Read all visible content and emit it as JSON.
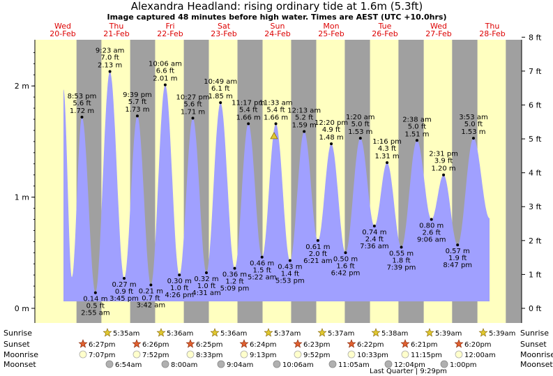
{
  "chart_data": {
    "type": "area",
    "title": "Alexandra Headland: rising  ordinary tide at 1.6m (5.3ft)",
    "subtitle": "Image captured 48 minutes before high water. Times are AEST (UTC +10.0hrs)",
    "y_left": {
      "ticks": [
        {
          "v": 0,
          "label": "0 m"
        },
        {
          "v": 1,
          "label": "1 m"
        },
        {
          "v": 2,
          "label": "2 m"
        }
      ]
    },
    "y_right": {
      "ticks": [
        "0 ft",
        "1 ft",
        "2 ft",
        "3 ft",
        "4 ft",
        "5 ft",
        "6 ft",
        "7 ft",
        "8 ft"
      ]
    },
    "ylim_m": [
      0,
      2.438
    ],
    "days": [
      {
        "dow": "Wed",
        "date": "20-Feb"
      },
      {
        "dow": "Thu",
        "date": "21-Feb"
      },
      {
        "dow": "Fri",
        "date": "22-Feb"
      },
      {
        "dow": "Sat",
        "date": "23-Feb"
      },
      {
        "dow": "Sun",
        "date": "24-Feb"
      },
      {
        "dow": "Mon",
        "date": "25-Feb"
      },
      {
        "dow": "Tue",
        "date": "26-Feb"
      },
      {
        "dow": "Wed",
        "date": "27-Feb"
      },
      {
        "dow": "Thu",
        "date": "28-Feb"
      }
    ],
    "tides": [
      {
        "type": "high",
        "day": 0,
        "time": "8:53 pm",
        "ft": "5.6 ft",
        "m": 1.72
      },
      {
        "type": "low",
        "day": 1,
        "time": "2:55 am",
        "ft": "0.5 ft",
        "m": 0.14
      },
      {
        "type": "high",
        "day": 1,
        "time": "9:23 am",
        "ft": "7.0 ft",
        "m": 2.13
      },
      {
        "type": "low",
        "day": 1,
        "time": "3:45 pm",
        "ft": "0.9 ft",
        "m": 0.27
      },
      {
        "type": "high",
        "day": 1,
        "time": "9:39 pm",
        "ft": "5.7 ft",
        "m": 1.73
      },
      {
        "type": "low",
        "day": 2,
        "time": "3:42 am",
        "ft": "0.7 ft",
        "m": 0.21
      },
      {
        "type": "high",
        "day": 2,
        "time": "10:06 am",
        "ft": "6.6 ft",
        "m": 2.01
      },
      {
        "type": "low",
        "day": 2,
        "time": "4:26 pm",
        "ft": "1.0 ft",
        "m": 0.3
      },
      {
        "type": "high",
        "day": 2,
        "time": "10:27 pm",
        "ft": "5.6 ft",
        "m": 1.71
      },
      {
        "type": "low",
        "day": 3,
        "time": "4:31 am",
        "ft": "1.0 ft",
        "m": 0.32
      },
      {
        "type": "high",
        "day": 3,
        "time": "10:49 am",
        "ft": "6.1 ft",
        "m": 1.85
      },
      {
        "type": "low",
        "day": 3,
        "time": "5:09 pm",
        "ft": "1.2 ft",
        "m": 0.36
      },
      {
        "type": "high",
        "day": 3,
        "time": "11:17 pm",
        "ft": "5.4 ft",
        "m": 1.66
      },
      {
        "type": "low",
        "day": 4,
        "time": "5:22 am",
        "ft": "1.5 ft",
        "m": 0.46
      },
      {
        "type": "high",
        "day": 4,
        "time": "11:33 am",
        "ft": "5.4 ft",
        "m": 1.66
      },
      {
        "type": "low",
        "day": 4,
        "time": "5:53 pm",
        "ft": "1.4 ft",
        "m": 0.43
      },
      {
        "type": "high",
        "day": 5,
        "time": "12:13 am",
        "ft": "5.2 ft",
        "m": 1.59
      },
      {
        "type": "low",
        "day": 5,
        "time": "6:21 am",
        "ft": "2.0 ft",
        "m": 0.61
      },
      {
        "type": "high",
        "day": 5,
        "time": "12:20 pm",
        "ft": "4.9 ft",
        "m": 1.48
      },
      {
        "type": "low",
        "day": 5,
        "time": "6:42 pm",
        "ft": "1.6 ft",
        "m": 0.5
      },
      {
        "type": "high",
        "day": 6,
        "time": "1:20 am",
        "ft": "5.0 ft",
        "m": 1.53
      },
      {
        "type": "low",
        "day": 6,
        "time": "7:36 am",
        "ft": "2.4 ft",
        "m": 0.74
      },
      {
        "type": "high",
        "day": 6,
        "time": "1:16 pm",
        "ft": "4.3 ft",
        "m": 1.31
      },
      {
        "type": "low",
        "day": 6,
        "time": "7:39 pm",
        "ft": "1.8 ft",
        "m": 0.55
      },
      {
        "type": "high",
        "day": 7,
        "time": "2:38 am",
        "ft": "5.0 ft",
        "m": 1.51
      },
      {
        "type": "low",
        "day": 7,
        "time": "9:06 am",
        "ft": "2.6 ft",
        "m": 0.8
      },
      {
        "type": "high",
        "day": 7,
        "time": "2:31 pm",
        "ft": "3.9 ft",
        "m": 1.2
      },
      {
        "type": "low",
        "day": 7,
        "time": "8:47 pm",
        "ft": "1.9 ft",
        "m": 0.57
      },
      {
        "type": "high",
        "day": 8,
        "time": "3:53 am",
        "ft": "5.0 ft",
        "m": 1.53
      }
    ],
    "astro_labels": [
      "Sunrise",
      "Sunset",
      "Moonrise",
      "Moonset"
    ],
    "sunrise": [
      "5:35am",
      "5:36am",
      "5:36am",
      "5:37am",
      "5:37am",
      "5:38am",
      "5:39am",
      "5:39am"
    ],
    "sunset": [
      "6:27pm",
      "6:26pm",
      "6:25pm",
      "6:24pm",
      "6:23pm",
      "6:22pm",
      "6:21pm",
      "6:20pm"
    ],
    "moonrise": [
      "7:07pm",
      "7:52pm",
      "8:33pm",
      "9:13pm",
      "9:52pm",
      "10:33pm",
      "11:15pm",
      "12:00am"
    ],
    "moonset": [
      "6:54am",
      "8:00am",
      "9:04am",
      "10:06am",
      "11:05am",
      "12:04pm",
      "1:00pm"
    ],
    "moon_phase": "Last Quarter | 9:29pm",
    "colors": {
      "day": "#ffffc0",
      "night": "#a0a0a0",
      "tide": "#a0a0ff",
      "day_label": "#dd0000",
      "sun_star": "#e0c830",
      "sunset_star": "#e06030",
      "moonrise": "#ffffcc",
      "moonset": "#b0b0b0"
    }
  }
}
